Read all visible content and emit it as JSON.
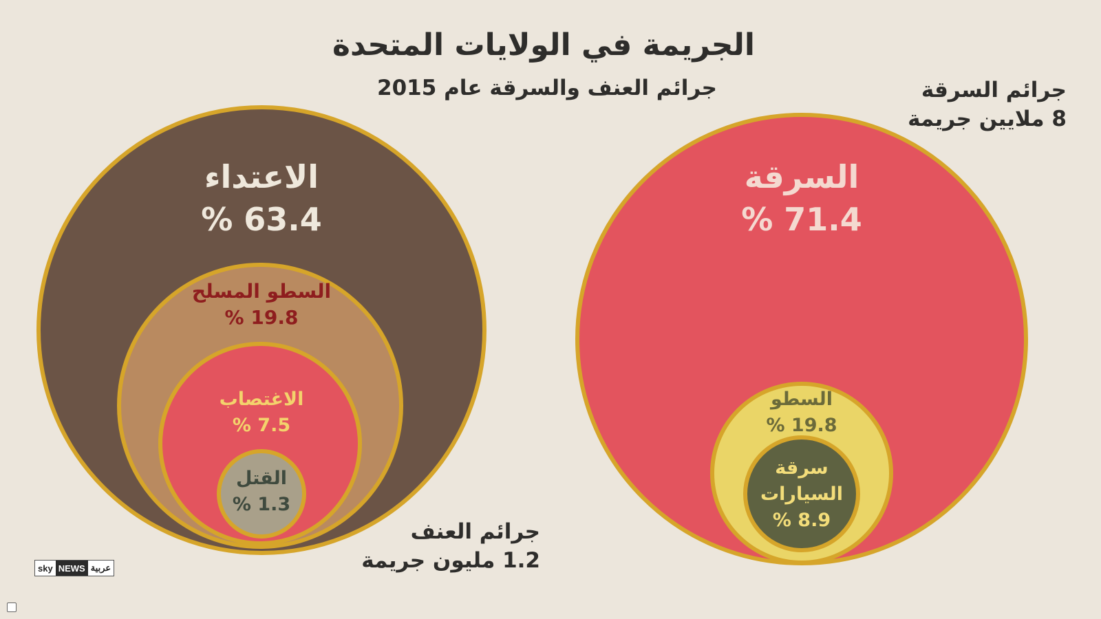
{
  "title": "الجريمة في الولايات المتحدة",
  "subtitle": "جرائم العنف والسرقة عام 2015",
  "colors": {
    "background": "#ece6dc",
    "ring": "#d6a52a",
    "assault": "#6b5446",
    "armed_robbery": "#b98a60",
    "rape": "#e3545e",
    "murder": "#a9a08a",
    "larceny": "#e3545e",
    "burglary": "#ead567",
    "vehicle_theft": "#5e6241"
  },
  "logo": {
    "sky": "sky",
    "news": "NEWS",
    "arabic": "عربية"
  },
  "chart_data": [
    {
      "type": "nested-circles",
      "group_label": "جرائم العنف",
      "total_label": "1.2 مليون جريمة",
      "unit": "%",
      "items": [
        {
          "name": "الاعتداء",
          "value": 63.4,
          "display": "% 63.4"
        },
        {
          "name": "السطو المسلح",
          "value": 19.8,
          "display": "% 19.8"
        },
        {
          "name": "الاغتصاب",
          "value": 7.5,
          "display": "% 7.5"
        },
        {
          "name": "القتل",
          "value": 1.3,
          "display": "% 1.3"
        }
      ]
    },
    {
      "type": "nested-circles",
      "group_label": "جرائم السرقة",
      "total_label": "8 ملايين جريمة",
      "unit": "%",
      "items": [
        {
          "name": "السرقة",
          "value": 71.4,
          "display": "% 71.4"
        },
        {
          "name": "السطو",
          "value": 19.8,
          "display": "% 19.8"
        },
        {
          "name": "سرقة السيارات",
          "name_lines": [
            "سرقة",
            "السيارات"
          ],
          "value": 8.9,
          "display": "% 8.9"
        }
      ]
    }
  ]
}
